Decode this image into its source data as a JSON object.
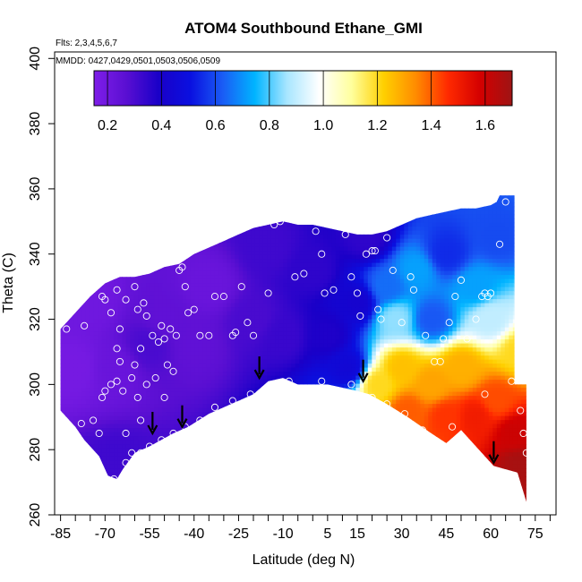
{
  "chart_data": {
    "type": "heatmap",
    "title": "ATOM4 Southbound Ethane_GMI",
    "subtitle_lines": [
      "Flts: 2,3,4,5,6,7",
      "MMDD: 0427,0429,0501,0503,0506,0509"
    ],
    "xlabel": "Latitude (deg N)",
    "ylabel": "Theta (C)",
    "xlim": [
      -87,
      82
    ],
    "ylim": [
      260,
      402
    ],
    "x_ticks": [
      -85,
      -70,
      -55,
      -40,
      -25,
      -10,
      5,
      15,
      30,
      45,
      60,
      75
    ],
    "x_minor_ticks": [
      -80,
      -75,
      -65,
      -60,
      -50,
      -45,
      -35,
      -30,
      -20,
      -15,
      -5,
      0,
      10,
      20,
      25,
      35,
      40,
      50,
      55,
      65,
      70,
      80
    ],
    "y_ticks": [
      260,
      280,
      300,
      320,
      340,
      360,
      380,
      400
    ],
    "colorbar": {
      "range": [
        0.15,
        1.7
      ],
      "ticks": [
        0.2,
        0.4,
        0.6,
        0.8,
        1.0,
        1.2,
        1.4,
        1.6
      ],
      "tick_labels": [
        "0.2",
        "0.4",
        "0.6",
        "0.8",
        "1.0",
        "1.2",
        "1.4",
        "1.6"
      ],
      "colors": [
        "#7f1ee8",
        "#5a0fd2",
        "#1a00c8",
        "#0a10e0",
        "#1a5cf5",
        "#00b4ff",
        "#a8e6ff",
        "#ffffff",
        "#ffff9e",
        "#ffd000",
        "#ff8c00",
        "#ff2a00",
        "#d40000",
        "#9e1414"
      ]
    },
    "domain_top": [
      [
        -85,
        317
      ],
      [
        -80,
        322
      ],
      [
        -75,
        327
      ],
      [
        -70,
        331
      ],
      [
        -65,
        333
      ],
      [
        -60,
        333
      ],
      [
        -55,
        334
      ],
      [
        -50,
        336
      ],
      [
        -45,
        337
      ],
      [
        -40,
        340
      ],
      [
        -35,
        342
      ],
      [
        -30,
        344
      ],
      [
        -25,
        346
      ],
      [
        -20,
        348
      ],
      [
        -15,
        349
      ],
      [
        -10,
        350
      ],
      [
        -5,
        349
      ],
      [
        0,
        349
      ],
      [
        5,
        348
      ],
      [
        10,
        347
      ],
      [
        15,
        346
      ],
      [
        20,
        346
      ],
      [
        25,
        347
      ],
      [
        30,
        349
      ],
      [
        35,
        351
      ],
      [
        40,
        352
      ],
      [
        45,
        353
      ],
      [
        50,
        354
      ],
      [
        55,
        354
      ],
      [
        60,
        355
      ],
      [
        62,
        356
      ],
      [
        63,
        358
      ],
      [
        68,
        358
      ],
      [
        68,
        300
      ],
      [
        72,
        300
      ],
      [
        72,
        264
      ]
    ],
    "domain_bottom": [
      [
        72,
        264
      ],
      [
        69,
        273
      ],
      [
        61,
        275
      ],
      [
        55,
        281
      ],
      [
        50,
        286
      ],
      [
        45,
        282
      ],
      [
        40,
        285
      ],
      [
        32,
        290
      ],
      [
        25,
        294
      ],
      [
        19,
        297
      ],
      [
        15,
        298
      ],
      [
        5,
        300
      ],
      [
        -5,
        300
      ],
      [
        -10,
        302
      ],
      [
        -15,
        301
      ],
      [
        -20,
        297
      ],
      [
        -25,
        295
      ],
      [
        -35,
        291
      ],
      [
        -42,
        287
      ],
      [
        -47,
        285
      ],
      [
        -51,
        283
      ],
      [
        -55,
        281
      ],
      [
        -60,
        279
      ],
      [
        -64,
        274
      ],
      [
        -66,
        271
      ],
      [
        -69,
        272
      ],
      [
        -72,
        278
      ],
      [
        -77,
        283
      ],
      [
        -80,
        287
      ],
      [
        -84,
        291
      ],
      [
        -85,
        292
      ]
    ],
    "field_nodes": [
      {
        "lat": -80,
        "theta": 305,
        "value": 0.18
      },
      {
        "lat": -75,
        "theta": 325,
        "value": 0.2
      },
      {
        "lat": -67,
        "theta": 305,
        "value": 0.22
      },
      {
        "lat": -55,
        "theta": 312,
        "value": 0.3
      },
      {
        "lat": -50,
        "theta": 320,
        "value": 0.25
      },
      {
        "lat": -40,
        "theta": 312,
        "value": 0.25
      },
      {
        "lat": -66,
        "theta": 275,
        "value": 0.32
      },
      {
        "lat": -35,
        "theta": 330,
        "value": 0.22
      },
      {
        "lat": -20,
        "theta": 320,
        "value": 0.3
      },
      {
        "lat": -15,
        "theta": 342,
        "value": 0.32
      },
      {
        "lat": -10,
        "theta": 315,
        "value": 0.33
      },
      {
        "lat": 0,
        "theta": 335,
        "value": 0.35
      },
      {
        "lat": 5,
        "theta": 315,
        "value": 0.38
      },
      {
        "lat": 12,
        "theta": 305,
        "value": 0.45
      },
      {
        "lat": 15,
        "theta": 325,
        "value": 0.42
      },
      {
        "lat": 18,
        "theta": 345,
        "value": 0.35
      },
      {
        "lat": 25,
        "theta": 330,
        "value": 0.65
      },
      {
        "lat": 28,
        "theta": 320,
        "value": 0.85
      },
      {
        "lat": 35,
        "theta": 335,
        "value": 0.72
      },
      {
        "lat": 40,
        "theta": 320,
        "value": 0.62
      },
      {
        "lat": 45,
        "theta": 340,
        "value": 0.55
      },
      {
        "lat": 55,
        "theta": 330,
        "value": 0.72
      },
      {
        "lat": 62,
        "theta": 345,
        "value": 0.6
      },
      {
        "lat": 60,
        "theta": 320,
        "value": 0.9
      },
      {
        "lat": 70,
        "theta": 310,
        "value": 1.2
      },
      {
        "lat": 22,
        "theta": 300,
        "value": 1.2
      },
      {
        "lat": 30,
        "theta": 305,
        "value": 1.25
      },
      {
        "lat": 40,
        "theta": 300,
        "value": 1.3
      },
      {
        "lat": 50,
        "theta": 305,
        "value": 1.28
      },
      {
        "lat": 32,
        "theta": 292,
        "value": 1.4
      },
      {
        "lat": 45,
        "theta": 290,
        "value": 1.45
      },
      {
        "lat": 55,
        "theta": 290,
        "value": 1.5
      },
      {
        "lat": 62,
        "theta": 295,
        "value": 1.42
      },
      {
        "lat": 68,
        "theta": 285,
        "value": 1.6
      },
      {
        "lat": 70,
        "theta": 275,
        "value": 1.68
      }
    ],
    "sample_points": [
      {
        "lat": -83,
        "theta": 317
      },
      {
        "lat": -77,
        "theta": 318
      },
      {
        "lat": -72,
        "theta": 331
      },
      {
        "lat": -71,
        "theta": 327
      },
      {
        "lat": -70,
        "theta": 326
      },
      {
        "lat": -68,
        "theta": 322
      },
      {
        "lat": -66,
        "theta": 329
      },
      {
        "lat": -63,
        "theta": 326
      },
      {
        "lat": -60,
        "theta": 330
      },
      {
        "lat": -59,
        "theta": 323
      },
      {
        "lat": -57,
        "theta": 325
      },
      {
        "lat": -56,
        "theta": 321
      },
      {
        "lat": -54,
        "theta": 315
      },
      {
        "lat": -52,
        "theta": 313
      },
      {
        "lat": -51,
        "theta": 318
      },
      {
        "lat": -50,
        "theta": 314
      },
      {
        "lat": -48,
        "theta": 317
      },
      {
        "lat": -46,
        "theta": 315
      },
      {
        "lat": -45,
        "theta": 335
      },
      {
        "lat": -44,
        "theta": 336
      },
      {
        "lat": -43,
        "theta": 330
      },
      {
        "lat": -42,
        "theta": 322
      },
      {
        "lat": -40,
        "theta": 323
      },
      {
        "lat": -38,
        "theta": 315
      },
      {
        "lat": -35,
        "theta": 315
      },
      {
        "lat": -33,
        "theta": 327
      },
      {
        "lat": -30,
        "theta": 327
      },
      {
        "lat": -27,
        "theta": 315
      },
      {
        "lat": -26,
        "theta": 316
      },
      {
        "lat": -24,
        "theta": 330
      },
      {
        "lat": -22,
        "theta": 319
      },
      {
        "lat": -20,
        "theta": 315
      },
      {
        "lat": -15,
        "theta": 328
      },
      {
        "lat": -13,
        "theta": 349
      },
      {
        "lat": -11,
        "theta": 350
      },
      {
        "lat": -6,
        "theta": 333
      },
      {
        "lat": -3,
        "theta": 334
      },
      {
        "lat": 1,
        "theta": 347
      },
      {
        "lat": 3,
        "theta": 340
      },
      {
        "lat": 4,
        "theta": 328
      },
      {
        "lat": 7,
        "theta": 329
      },
      {
        "lat": 11,
        "theta": 346
      },
      {
        "lat": 13,
        "theta": 333
      },
      {
        "lat": 15,
        "theta": 328
      },
      {
        "lat": 16,
        "theta": 321
      },
      {
        "lat": 18,
        "theta": 340
      },
      {
        "lat": 20,
        "theta": 341
      },
      {
        "lat": 21,
        "theta": 341
      },
      {
        "lat": 22,
        "theta": 323
      },
      {
        "lat": 23,
        "theta": 320
      },
      {
        "lat": 25,
        "theta": 345
      },
      {
        "lat": 27,
        "theta": 335
      },
      {
        "lat": 30,
        "theta": 319
      },
      {
        "lat": 33,
        "theta": 333
      },
      {
        "lat": 34,
        "theta": 329
      },
      {
        "lat": 38,
        "theta": 315
      },
      {
        "lat": 41,
        "theta": 307
      },
      {
        "lat": 43,
        "theta": 307
      },
      {
        "lat": 44,
        "theta": 314
      },
      {
        "lat": 46,
        "theta": 319
      },
      {
        "lat": 48,
        "theta": 327
      },
      {
        "lat": 50,
        "theta": 332
      },
      {
        "lat": 52,
        "theta": 314
      },
      {
        "lat": 55,
        "theta": 320
      },
      {
        "lat": 57,
        "theta": 327
      },
      {
        "lat": 58,
        "theta": 328
      },
      {
        "lat": 59,
        "theta": 327
      },
      {
        "lat": 60,
        "theta": 328
      },
      {
        "lat": 63,
        "theta": 343
      },
      {
        "lat": 65,
        "theta": 356
      },
      {
        "lat": 67,
        "theta": 301
      },
      {
        "lat": 70,
        "theta": 292
      },
      {
        "lat": 71,
        "theta": 285
      },
      {
        "lat": 72,
        "theta": 279
      },
      {
        "lat": 58,
        "theta": 297
      },
      {
        "lat": 47,
        "theta": 287
      },
      {
        "lat": 43,
        "theta": 279
      },
      {
        "lat": 37,
        "theta": 286
      },
      {
        "lat": 31,
        "theta": 291
      },
      {
        "lat": 25,
        "theta": 294
      },
      {
        "lat": 20,
        "theta": 296
      },
      {
        "lat": 13,
        "theta": 300
      },
      {
        "lat": 3,
        "theta": 301
      },
      {
        "lat": -8,
        "theta": 301
      },
      {
        "lat": -21,
        "theta": 297
      },
      {
        "lat": -27,
        "theta": 295
      },
      {
        "lat": -33,
        "theta": 293
      },
      {
        "lat": -38,
        "theta": 289
      },
      {
        "lat": -43,
        "theta": 287
      },
      {
        "lat": -47,
        "theta": 285
      },
      {
        "lat": -51,
        "theta": 283
      },
      {
        "lat": -55,
        "theta": 281
      },
      {
        "lat": -58,
        "theta": 279
      },
      {
        "lat": -61,
        "theta": 279
      },
      {
        "lat": -63,
        "theta": 276
      },
      {
        "lat": -67,
        "theta": 271
      },
      {
        "lat": -70,
        "theta": 271
      },
      {
        "lat": -72,
        "theta": 285
      },
      {
        "lat": -74,
        "theta": 289
      },
      {
        "lat": -78,
        "theta": 288
      },
      {
        "lat": -80,
        "theta": 285
      },
      {
        "lat": -63,
        "theta": 285
      },
      {
        "lat": -58,
        "theta": 289
      },
      {
        "lat": -64,
        "theta": 298
      },
      {
        "lat": -66,
        "theta": 301
      },
      {
        "lat": -68,
        "theta": 300
      },
      {
        "lat": -70,
        "theta": 298
      },
      {
        "lat": -71,
        "theta": 296
      },
      {
        "lat": -61,
        "theta": 302
      },
      {
        "lat": -59,
        "theta": 296
      },
      {
        "lat": -56,
        "theta": 300
      },
      {
        "lat": -53,
        "theta": 302
      },
      {
        "lat": -50,
        "theta": 296
      },
      {
        "lat": -49,
        "theta": 306
      },
      {
        "lat": -47,
        "theta": 304
      },
      {
        "lat": -65,
        "theta": 307
      },
      {
        "lat": -66,
        "theta": 311
      },
      {
        "lat": -65,
        "theta": 317
      },
      {
        "lat": -58,
        "theta": 311
      },
      {
        "lat": -60,
        "theta": 306
      }
    ],
    "arrows_lat": [
      -54,
      -44,
      -18,
      17,
      61
    ],
    "arrows_theta": [
      285,
      287,
      302,
      301,
      276
    ]
  }
}
